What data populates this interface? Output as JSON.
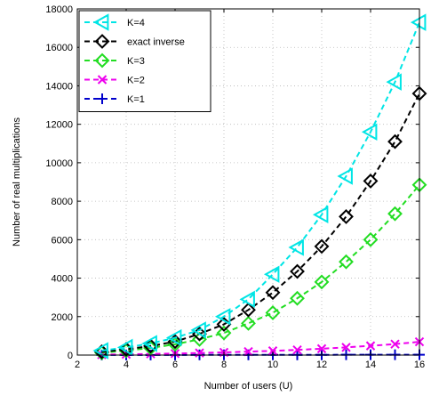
{
  "chart_data": {
    "type": "line",
    "title": "",
    "xlabel": "Number of users (U)",
    "ylabel": "Number of real multiplications",
    "xlim": [
      2,
      16
    ],
    "ylim": [
      0,
      18000
    ],
    "xticks": [
      2,
      4,
      6,
      8,
      10,
      12,
      14,
      16
    ],
    "yticks": [
      0,
      2000,
      4000,
      6000,
      8000,
      10000,
      12000,
      14000,
      16000,
      18000
    ],
    "grid": true,
    "legend_position": "top-left",
    "x": [
      3,
      4,
      5,
      6,
      7,
      8,
      9,
      10,
      11,
      12,
      13,
      14,
      15,
      16
    ],
    "series": [
      {
        "name": "K=4",
        "color": "#00e5e5",
        "marker": "triangle-left",
        "values": [
          230,
          400,
          600,
          900,
          1300,
          2000,
          2900,
          4200,
          5600,
          7300,
          9300,
          11600,
          14200,
          17300
        ]
      },
      {
        "name": "exact inverse",
        "color": "#000000",
        "marker": "diamond",
        "values": [
          170,
          300,
          470,
          700,
          1100,
          1600,
          2350,
          3250,
          4350,
          5650,
          7200,
          9050,
          11100,
          13600
        ]
      },
      {
        "name": "K=3",
        "color": "#22dd22",
        "marker": "diamond",
        "values": [
          120,
          230,
          370,
          560,
          820,
          1150,
          1650,
          2200,
          2950,
          3800,
          4850,
          6000,
          7350,
          8850
        ]
      },
      {
        "name": "K=2",
        "color": "#ee00ee",
        "marker": "x",
        "values": [
          20,
          40,
          60,
          80,
          110,
          140,
          180,
          220,
          270,
          330,
          400,
          480,
          570,
          690
        ]
      },
      {
        "name": "K=1",
        "color": "#0000cc",
        "marker": "plus",
        "values": [
          5,
          6,
          7,
          8,
          9,
          10,
          11,
          12,
          13,
          14,
          15,
          16,
          17,
          18
        ]
      }
    ]
  }
}
